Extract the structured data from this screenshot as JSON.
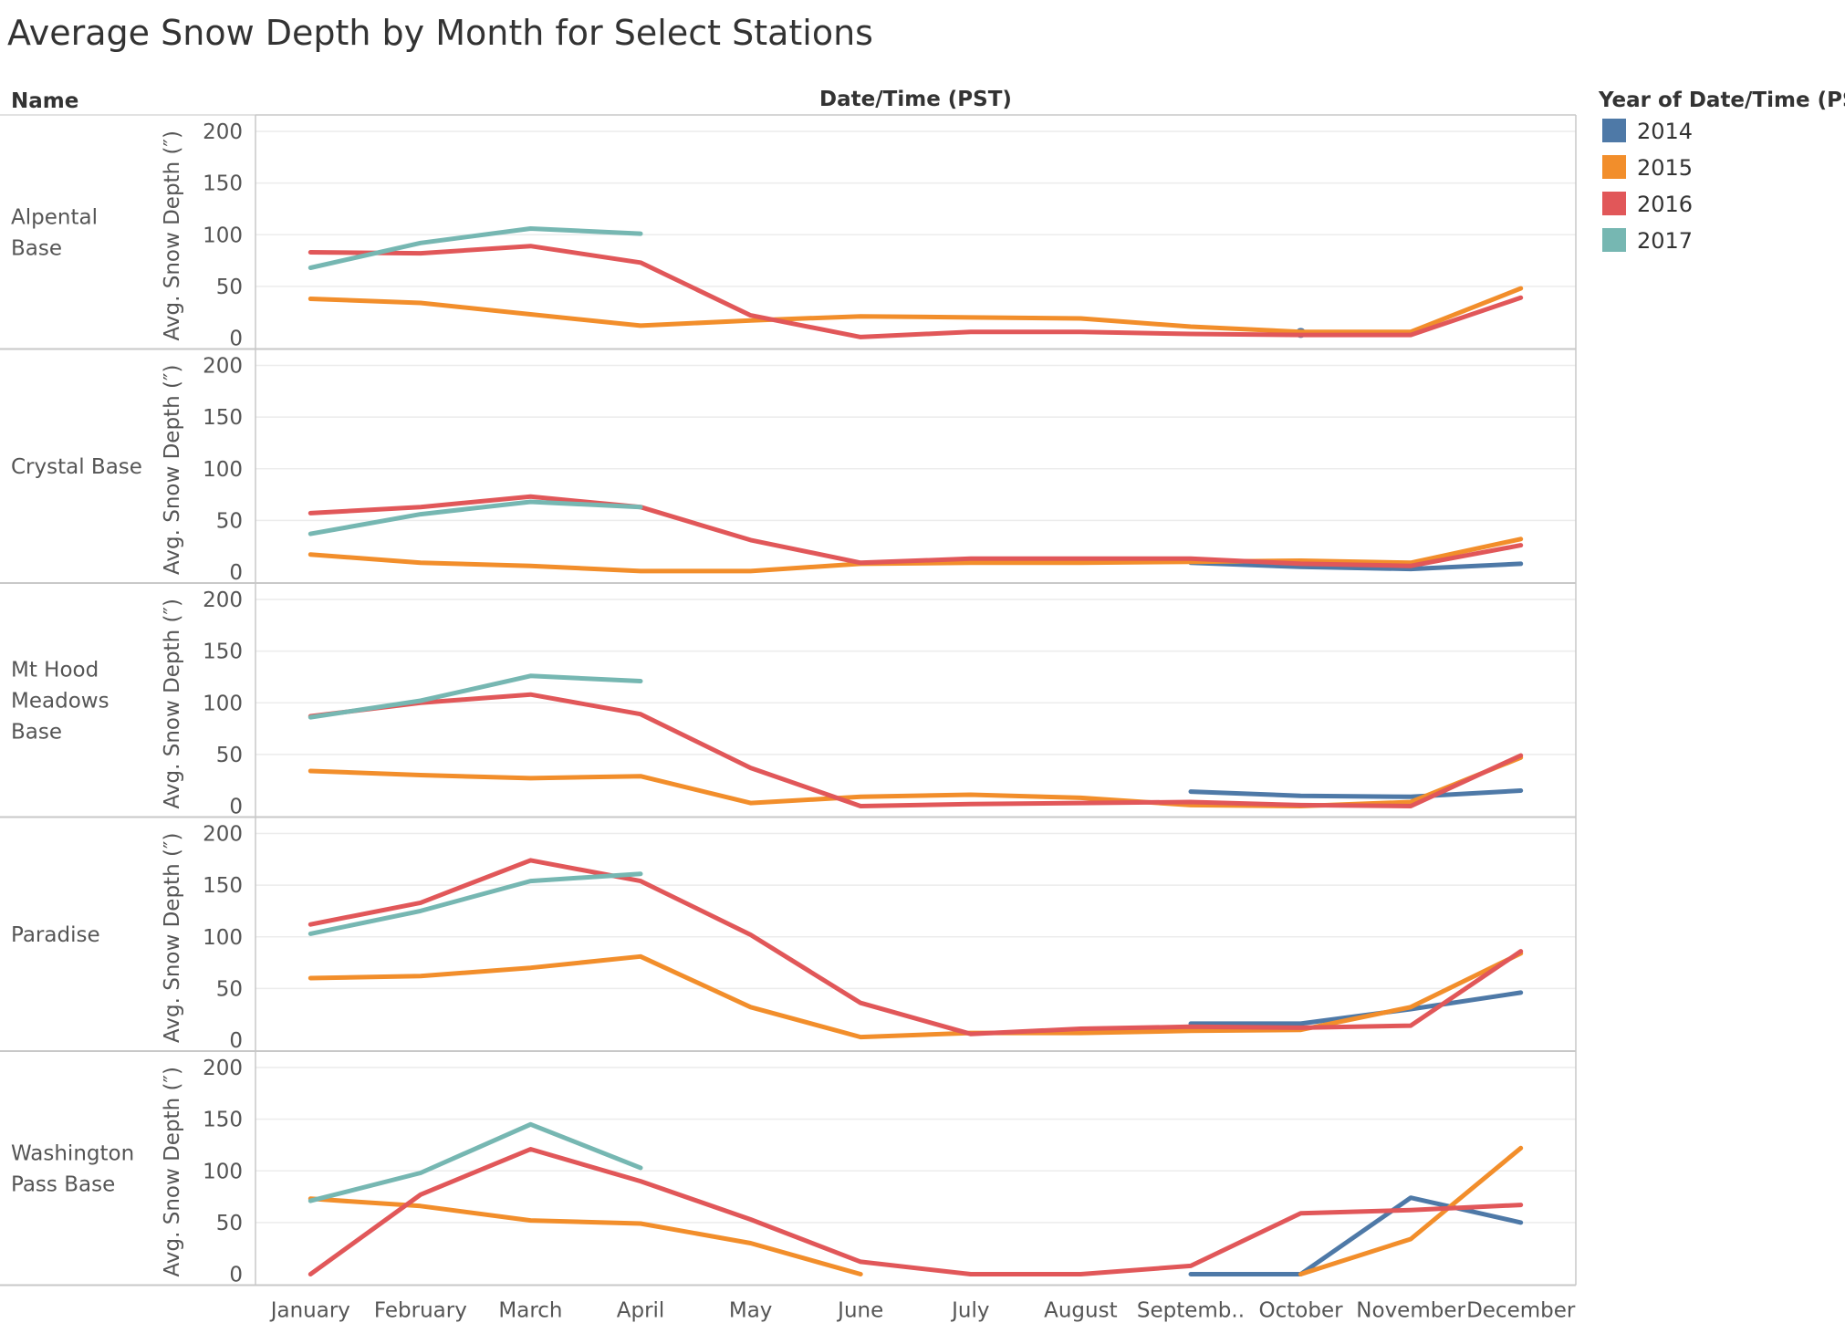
{
  "title": "Average Snow Depth by Month for Select Stations",
  "row_header": "Name",
  "column_header": "Date/Time (PST)",
  "legend_title": "Year of Date/Time (PST)",
  "colors": {
    "2014": "#4e79a7",
    "2015": "#f28e2b",
    "2016": "#e15759",
    "2017": "#76b7b2"
  },
  "chart_data": {
    "type": "line",
    "ylabel": "Avg. Snow Depth (″)",
    "xlabel": "Date/Time (PST)",
    "ylim": [
      0,
      200
    ],
    "yticks": [
      0,
      50,
      100,
      150,
      200
    ],
    "months": [
      "January",
      "February",
      "March",
      "April",
      "May",
      "June",
      "July",
      "August",
      "Septemb..",
      "October",
      "November",
      "December"
    ],
    "legend": [
      "2014",
      "2015",
      "2016",
      "2017"
    ],
    "panels": [
      {
        "name": [
          "Alpental",
          "Base"
        ],
        "series": [
          {
            "name": "2014",
            "values": [
              null,
              null,
              null,
              null,
              null,
              null,
              null,
              null,
              null,
              5,
              null,
              null
            ]
          },
          {
            "name": "2015",
            "values": [
              38,
              34,
              23,
              12,
              17,
              21,
              20,
              19,
              11,
              6,
              6,
              48
            ]
          },
          {
            "name": "2016",
            "values": [
              83,
              82,
              89,
              73,
              22,
              1,
              6,
              6,
              4,
              3,
              3,
              39
            ]
          },
          {
            "name": "2017",
            "values": [
              68,
              92,
              106,
              101,
              null,
              null,
              null,
              null,
              null,
              null,
              null,
              null
            ]
          }
        ]
      },
      {
        "name": [
          "Crystal Base"
        ],
        "series": [
          {
            "name": "2014",
            "values": [
              null,
              null,
              null,
              null,
              null,
              null,
              null,
              null,
              9,
              5,
              3,
              8
            ]
          },
          {
            "name": "2015",
            "values": [
              17,
              9,
              6,
              1,
              1,
              8,
              9,
              9,
              10,
              11,
              9,
              32
            ]
          },
          {
            "name": "2016",
            "values": [
              57,
              63,
              73,
              63,
              31,
              9,
              13,
              13,
              13,
              8,
              6,
              26
            ]
          },
          {
            "name": "2017",
            "values": [
              37,
              56,
              68,
              63,
              null,
              null,
              null,
              null,
              null,
              null,
              null,
              null
            ]
          }
        ]
      },
      {
        "name": [
          "Mt Hood",
          "Meadows",
          "Base"
        ],
        "series": [
          {
            "name": "2014",
            "values": [
              null,
              null,
              null,
              null,
              null,
              null,
              null,
              null,
              14,
              10,
              9,
              15
            ]
          },
          {
            "name": "2015",
            "values": [
              34,
              30,
              27,
              29,
              3,
              9,
              11,
              8,
              1,
              0,
              4,
              47
            ]
          },
          {
            "name": "2016",
            "values": [
              87,
              100,
              108,
              89,
              37,
              0,
              2,
              3,
              4,
              1,
              0,
              49
            ]
          },
          {
            "name": "2017",
            "values": [
              86,
              102,
              126,
              121,
              null,
              null,
              null,
              null,
              null,
              null,
              null,
              null
            ]
          }
        ]
      },
      {
        "name": [
          "Paradise"
        ],
        "series": [
          {
            "name": "2014",
            "values": [
              null,
              null,
              null,
              null,
              null,
              null,
              null,
              null,
              16,
              16,
              30,
              46
            ]
          },
          {
            "name": "2015",
            "values": [
              60,
              62,
              70,
              81,
              32,
              3,
              7,
              7,
              9,
              10,
              32,
              84
            ]
          },
          {
            "name": "2016",
            "values": [
              112,
              133,
              174,
              154,
              102,
              36,
              6,
              11,
              13,
              12,
              14,
              86
            ]
          },
          {
            "name": "2017",
            "values": [
              103,
              125,
              154,
              161,
              null,
              null,
              null,
              null,
              null,
              null,
              null,
              null
            ]
          }
        ]
      },
      {
        "name": [
          "Washington",
          "Pass Base"
        ],
        "series": [
          {
            "name": "2014",
            "values": [
              null,
              null,
              null,
              null,
              null,
              null,
              null,
              null,
              0,
              0,
              74,
              50
            ]
          },
          {
            "name": "2015",
            "values": [
              73,
              66,
              52,
              49,
              30,
              0,
              null,
              null,
              null,
              0,
              34,
              122
            ]
          },
          {
            "name": "2016",
            "values": [
              0,
              77,
              121,
              90,
              53,
              12,
              0,
              0,
              8,
              59,
              62,
              67
            ]
          },
          {
            "name": "2017",
            "values": [
              71,
              98,
              145,
              103,
              null,
              null,
              null,
              null,
              null,
              null,
              null,
              null
            ]
          }
        ]
      }
    ]
  }
}
